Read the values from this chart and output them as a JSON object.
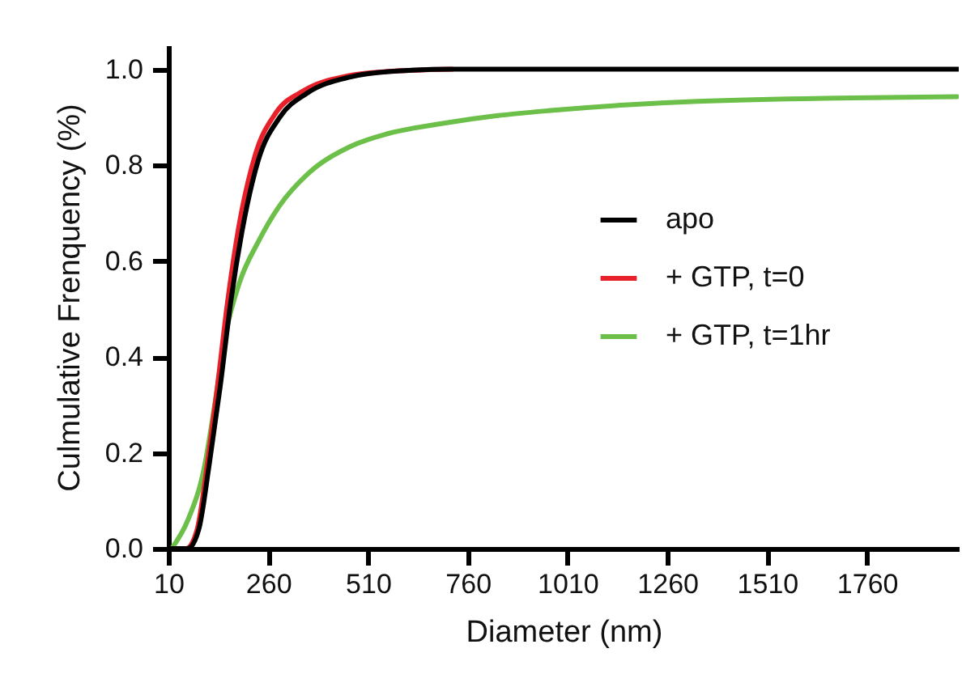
{
  "chart_data": {
    "type": "line",
    "xlabel": "Diameter (nm)",
    "ylabel": "Culmulative Frenquency (%)",
    "xlim": [
      10,
      1990
    ],
    "xticks": [
      10,
      260,
      510,
      760,
      1010,
      1260,
      1510,
      1760
    ],
    "ylim": [
      0,
      1.05
    ],
    "yticks": [
      {
        "value": 0,
        "label": "0.0"
      },
      {
        "value": 0.2,
        "label": "0.2"
      },
      {
        "value": 0.4,
        "label": "0.4"
      },
      {
        "value": 0.6,
        "label": "0.6"
      },
      {
        "value": 0.8,
        "label": "0.8"
      },
      {
        "value": 1,
        "label": "1.0"
      }
    ],
    "grid": false,
    "legend": "right",
    "marker": "none",
    "line_style": "solid",
    "series": [
      {
        "name": "apo",
        "color": "#000000",
        "x": [
          10,
          59,
          86,
          113,
          140,
          167,
          194,
          235,
          289,
          357,
          466,
          561,
          724,
          1000,
          1500,
          1990
        ],
        "values": [
          0,
          0,
          0.04,
          0.18,
          0.34,
          0.52,
          0.66,
          0.81,
          0.9,
          0.95,
          0.984,
          0.995,
          1,
          1,
          1,
          1
        ]
      },
      {
        "name": "+ GTP, t=0",
        "color": "#e8202a",
        "x": [
          10,
          55,
          82,
          108,
          133,
          159,
          186,
          227,
          280,
          348,
          458,
          555,
          720
        ],
        "values": [
          0,
          0,
          0.04,
          0.18,
          0.34,
          0.52,
          0.67,
          0.82,
          0.91,
          0.955,
          0.986,
          0.995,
          1
        ]
      },
      {
        "name": "+ GTP, t=1hr",
        "color": "#6cc04a",
        "x": [
          18,
          59,
          100,
          126,
          154,
          188,
          235,
          289,
          357,
          466,
          561,
          697,
          832,
          968,
          1335,
          1986
        ],
        "values": [
          0,
          0.06,
          0.17,
          0.3,
          0.45,
          0.555,
          0.64,
          0.716,
          0.78,
          0.839,
          0.866,
          0.887,
          0.903,
          0.914,
          0.933,
          0.943
        ]
      }
    ]
  }
}
